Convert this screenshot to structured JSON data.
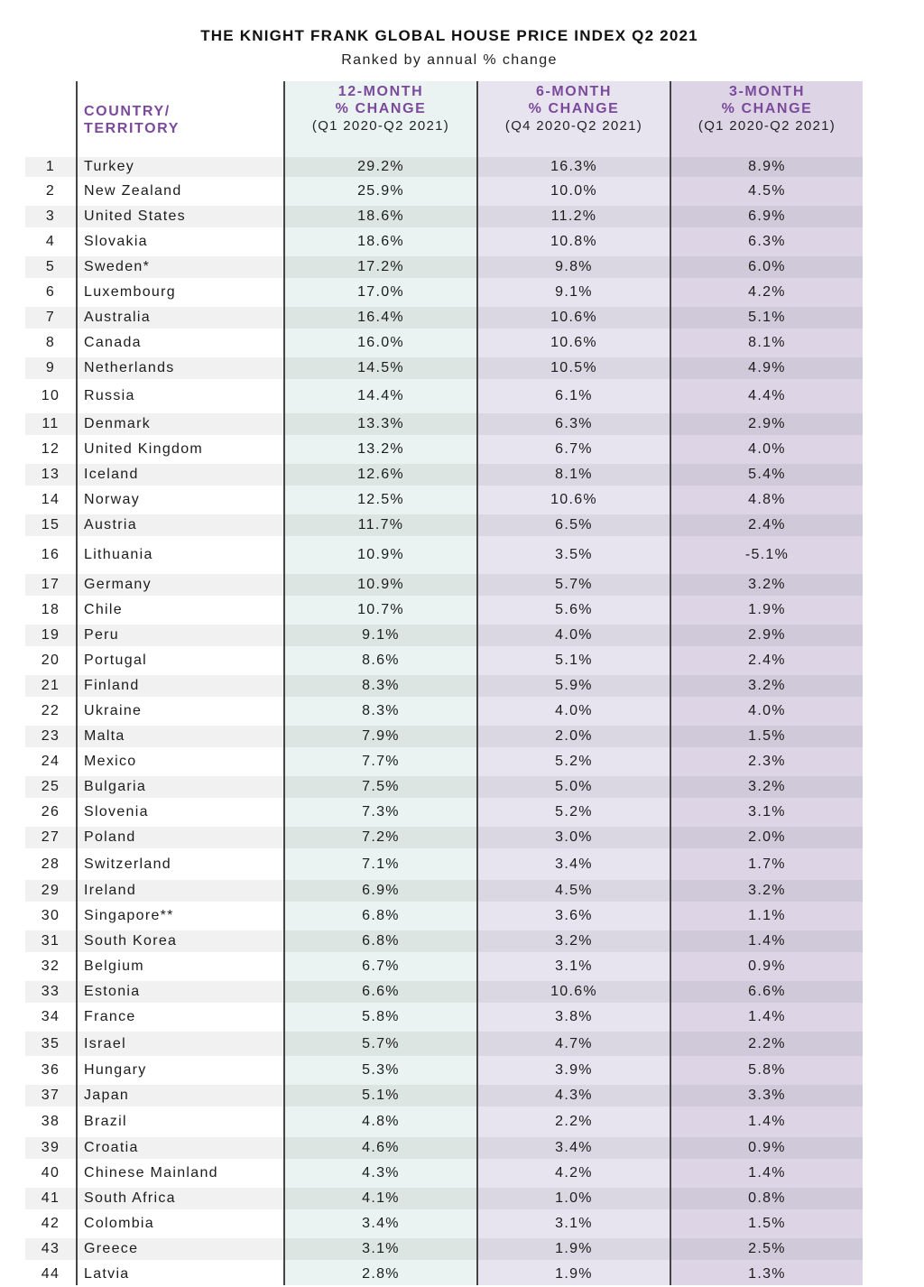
{
  "header": {
    "title": "THE KNIGHT FRANK GLOBAL HOUSE PRICE INDEX Q2 2021",
    "subtitle": "Ranked by annual % change"
  },
  "columns": {
    "country": [
      "COUNTRY/",
      "TERRITORY"
    ],
    "m12": {
      "line1": "12-MONTH",
      "line2": "% CHANGE",
      "period": "(Q1 2020-Q2 2021)"
    },
    "m6": {
      "line1": "6-MONTH",
      "line2": "% CHANGE",
      "period": "(Q4 2020-Q2 2021)"
    },
    "m3": {
      "line1": "3-MONTH",
      "line2": "% CHANGE",
      "period": "(Q1 2020-Q2 2021)"
    }
  },
  "colors": {
    "header_purple": "#7b4a9a",
    "col12_bg": "#eaf3f1",
    "col6_bg": "#e7e4f0",
    "col3_bg": "#ddd5e6"
  },
  "chart_data": {
    "type": "table",
    "title": "THE KNIGHT FRANK GLOBAL HOUSE PRICE INDEX Q2 2021",
    "subtitle": "Ranked by annual % change",
    "columns": [
      "",
      "COUNTRY/ TERRITORY",
      "12-MONTH % CHANGE (Q1 2020-Q2 2021)",
      "6-MONTH % CHANGE (Q4 2020-Q2 2021)",
      "3-MONTH % CHANGE (Q1 2020-Q2 2021)"
    ],
    "rows": [
      {
        "rank": "1",
        "country": "Turkey",
        "m12": "29.2%",
        "m6": "16.3%",
        "m3": "8.9%"
      },
      {
        "rank": "2",
        "country": "New Zealand",
        "m12": "25.9%",
        "m6": "10.0%",
        "m3": "4.5%"
      },
      {
        "rank": "3",
        "country": "United States",
        "m12": "18.6%",
        "m6": "11.2%",
        "m3": "6.9%"
      },
      {
        "rank": "4",
        "country": "Slovakia",
        "m12": "18.6%",
        "m6": "10.8%",
        "m3": "6.3%"
      },
      {
        "rank": "5",
        "country": "Sweden*",
        "m12": "17.2%",
        "m6": "9.8%",
        "m3": "6.0%"
      },
      {
        "rank": "6",
        "country": "Luxembourg",
        "m12": "17.0%",
        "m6": "9.1%",
        "m3": "4.2%"
      },
      {
        "rank": "7",
        "country": "Australia",
        "m12": "16.4%",
        "m6": "10.6%",
        "m3": "5.1%"
      },
      {
        "rank": "8",
        "country": "Canada",
        "m12": "16.0%",
        "m6": "10.6%",
        "m3": "8.1%"
      },
      {
        "rank": "9",
        "country": "Netherlands",
        "m12": "14.5%",
        "m6": "10.5%",
        "m3": "4.9%"
      },
      {
        "rank": "10",
        "country": "Russia",
        "m12": "14.4%",
        "m6": "6.1%",
        "m3": "4.4%"
      },
      {
        "rank": "11",
        "country": "Denmark",
        "m12": "13.3%",
        "m6": "6.3%",
        "m3": "2.9%"
      },
      {
        "rank": "12",
        "country": "United Kingdom",
        "m12": "13.2%",
        "m6": "6.7%",
        "m3": "4.0%"
      },
      {
        "rank": "13",
        "country": "Iceland",
        "m12": "12.6%",
        "m6": "8.1%",
        "m3": "5.4%"
      },
      {
        "rank": "14",
        "country": "Norway",
        "m12": "12.5%",
        "m6": "10.6%",
        "m3": "4.8%"
      },
      {
        "rank": "15",
        "country": "Austria",
        "m12": "11.7%",
        "m6": "6.5%",
        "m3": "2.4%"
      },
      {
        "rank": "16",
        "country": "Lithuania",
        "m12": "10.9%",
        "m6": "3.5%",
        "m3": "-5.1%"
      },
      {
        "rank": "17",
        "country": "Germany",
        "m12": "10.9%",
        "m6": "5.7%",
        "m3": "3.2%"
      },
      {
        "rank": "18",
        "country": "Chile",
        "m12": "10.7%",
        "m6": "5.6%",
        "m3": "1.9%"
      },
      {
        "rank": "19",
        "country": "Peru",
        "m12": "9.1%",
        "m6": "4.0%",
        "m3": "2.9%"
      },
      {
        "rank": "20",
        "country": "Portugal",
        "m12": "8.6%",
        "m6": "5.1%",
        "m3": "2.4%"
      },
      {
        "rank": "21",
        "country": "Finland",
        "m12": "8.3%",
        "m6": "5.9%",
        "m3": "3.2%"
      },
      {
        "rank": "22",
        "country": "Ukraine",
        "m12": "8.3%",
        "m6": "4.0%",
        "m3": "4.0%"
      },
      {
        "rank": "23",
        "country": "Malta",
        "m12": "7.9%",
        "m6": "2.0%",
        "m3": "1.5%"
      },
      {
        "rank": "24",
        "country": "Mexico",
        "m12": "7.7%",
        "m6": "5.2%",
        "m3": "2.3%"
      },
      {
        "rank": "25",
        "country": "Bulgaria",
        "m12": "7.5%",
        "m6": "5.0%",
        "m3": "3.2%"
      },
      {
        "rank": "26",
        "country": "Slovenia",
        "m12": "7.3%",
        "m6": "5.2%",
        "m3": "3.1%"
      },
      {
        "rank": "27",
        "country": "Poland",
        "m12": "7.2%",
        "m6": "3.0%",
        "m3": "2.0%"
      },
      {
        "rank": "28",
        "country": "Switzerland",
        "m12": "7.1%",
        "m6": "3.4%",
        "m3": "1.7%"
      },
      {
        "rank": "29",
        "country": "Ireland",
        "m12": "6.9%",
        "m6": "4.5%",
        "m3": "3.2%"
      },
      {
        "rank": "30",
        "country": "Singapore**",
        "m12": "6.8%",
        "m6": "3.6%",
        "m3": "1.1%"
      },
      {
        "rank": "31",
        "country": "South Korea",
        "m12": "6.8%",
        "m6": "3.2%",
        "m3": "1.4%"
      },
      {
        "rank": "32",
        "country": "Belgium",
        "m12": "6.7%",
        "m6": "3.1%",
        "m3": "0.9%"
      },
      {
        "rank": "33",
        "country": "Estonia",
        "m12": "6.6%",
        "m6": "10.6%",
        "m3": "6.6%"
      },
      {
        "rank": "34",
        "country": "France",
        "m12": "5.8%",
        "m6": "3.8%",
        "m3": "1.4%"
      },
      {
        "rank": "35",
        "country": "Israel",
        "m12": "5.7%",
        "m6": "4.7%",
        "m3": "2.2%"
      },
      {
        "rank": "36",
        "country": "Hungary",
        "m12": "5.3%",
        "m6": "3.9%",
        "m3": "5.8%"
      },
      {
        "rank": "37",
        "country": "Japan",
        "m12": "5.1%",
        "m6": "4.3%",
        "m3": "3.3%"
      },
      {
        "rank": "38",
        "country": "Brazil",
        "m12": "4.8%",
        "m6": "2.2%",
        "m3": "1.4%"
      },
      {
        "rank": "39",
        "country": "Croatia",
        "m12": "4.6%",
        "m6": "3.4%",
        "m3": "0.9%"
      },
      {
        "rank": "40",
        "country": "Chinese Mainland",
        "m12": "4.3%",
        "m6": "4.2%",
        "m3": "1.4%"
      },
      {
        "rank": "41",
        "country": "South Africa",
        "m12": "4.1%",
        "m6": "1.0%",
        "m3": "0.8%"
      },
      {
        "rank": "42",
        "country": "Colombia",
        "m12": "3.4%",
        "m6": "3.1%",
        "m3": "1.5%"
      },
      {
        "rank": "43",
        "country": "Greece",
        "m12": "3.1%",
        "m6": "1.9%",
        "m3": "2.5%"
      },
      {
        "rank": "44",
        "country": "Latvia",
        "m12": "2.8%",
        "m6": "1.9%",
        "m3": "1.3%"
      }
    ]
  }
}
